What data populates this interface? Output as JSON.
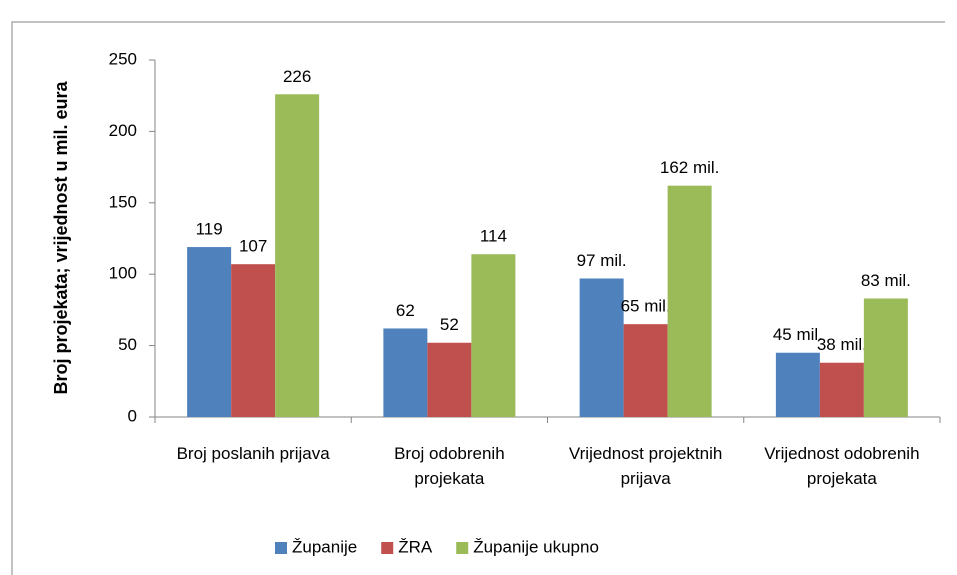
{
  "chart_data": {
    "type": "bar",
    "y_label": "Broj projekata; vrijednost u mil. eura",
    "categories": [
      "Broj poslanih prijava",
      "Broj odobrenih projekata",
      "Vrijednost projektnih prijava",
      "Vrijednost odobrenih projekata"
    ],
    "series": [
      {
        "name": "Županije",
        "color": "#4f81bd",
        "values": [
          119,
          62,
          97,
          45
        ],
        "value_labels": [
          "119",
          "62",
          "97 mil.",
          "45 mil."
        ]
      },
      {
        "name": "ŽRA",
        "color": "#c0504d",
        "values": [
          107,
          52,
          65,
          38
        ],
        "value_labels": [
          "107",
          "52",
          "65 mil.",
          "38 mil."
        ]
      },
      {
        "name": "Županije ukupno",
        "color": "#9bbb59",
        "values": [
          226,
          114,
          162,
          83
        ],
        "value_labels": [
          "226",
          "114",
          "162 mil.",
          "83 mil."
        ]
      }
    ],
    "ylim": [
      0,
      250
    ],
    "yticks": [
      0,
      50,
      100,
      150,
      200,
      250
    ],
    "grid": false,
    "legend": "bottom"
  }
}
